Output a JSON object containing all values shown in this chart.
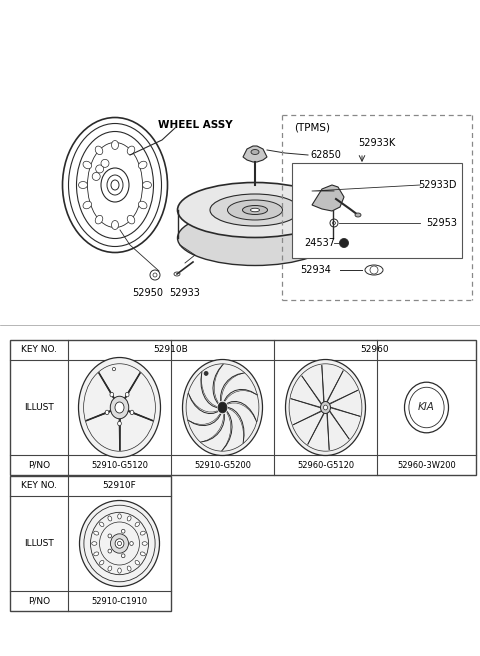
{
  "bg_color": "#ffffff",
  "line_color": "#2a2a2a",
  "text_color": "#000000",
  "table_border_color": "#444444",
  "diagram_label": "WHEEL ASSY",
  "tpms_label": "(TPMS)",
  "tpms_parts": [
    "52933K",
    "52933D",
    "52953",
    "24537",
    "52934"
  ],
  "part_62850": "62850",
  "part_52950": "52950",
  "part_52933": "52933",
  "table1_header_col1": "KEY NO.",
  "table1_header_col2": "52910B",
  "table1_header_col3": "52960",
  "table1_row1_label": "ILLUST",
  "table1_row2_label": "P/NO",
  "table1_pnos": [
    "52910-G5120",
    "52910-G5200",
    "52960-G5120",
    "52960-3W200"
  ],
  "table2_header_col1": "KEY NO.",
  "table2_header_col2": "52910F",
  "table2_row1_label": "ILLUST",
  "table2_row2_label": "P/NO",
  "table2_pno": "52910-C1910"
}
